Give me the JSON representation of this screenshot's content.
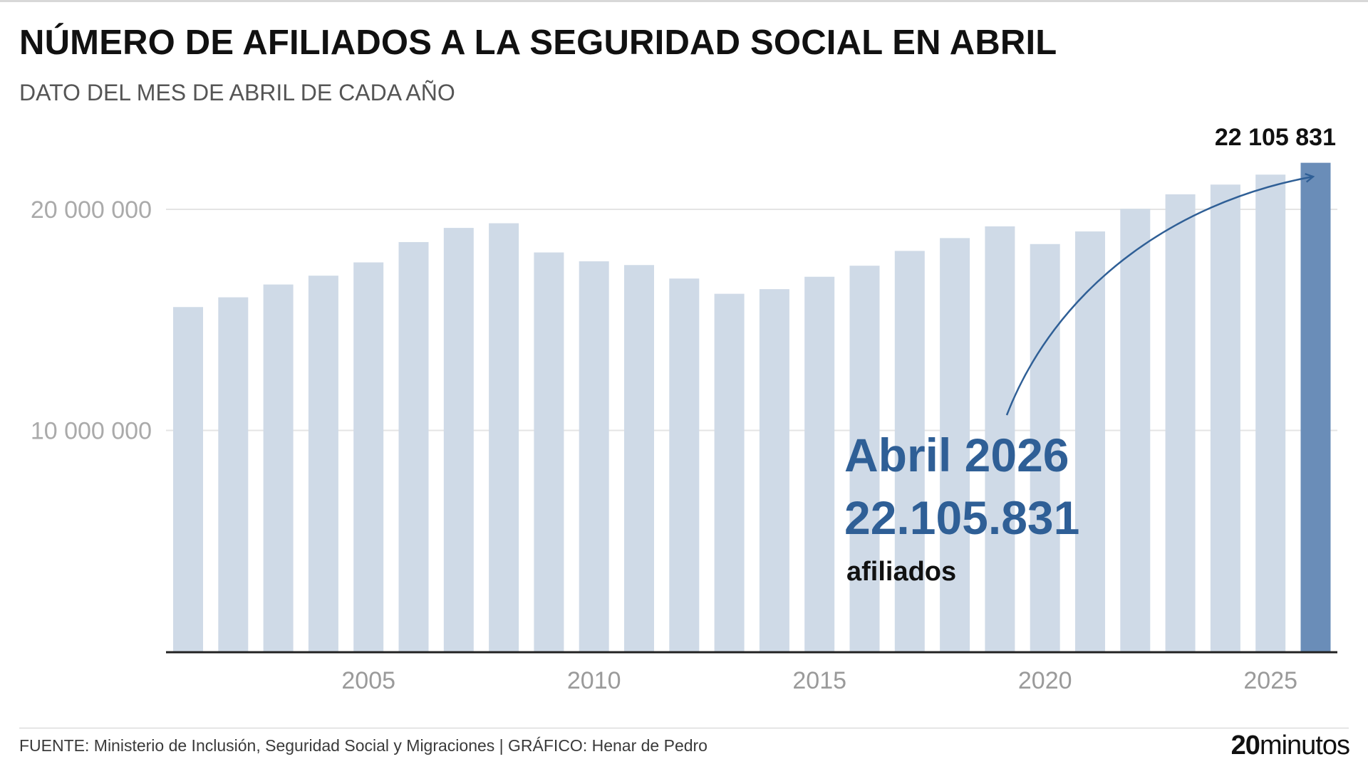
{
  "header": {
    "title": "NÚMERO DE AFILIADOS A LA SEGURIDAD SOCIAL EN ABRIL",
    "subtitle": "DATO DEL MES DE ABRIL DE CADA AÑO"
  },
  "colors": {
    "bar": "#cfdae7",
    "highlight_bar": "#6a8db8",
    "annotation": "#2f5f96",
    "axis": "#222222",
    "grid": "#e4e4e4",
    "tick_text": "#9a9a9a"
  },
  "chart_data": {
    "type": "bar",
    "years": [
      2001,
      2002,
      2003,
      2004,
      2005,
      2006,
      2007,
      2008,
      2009,
      2010,
      2011,
      2012,
      2013,
      2014,
      2015,
      2016,
      2017,
      2018,
      2019,
      2020,
      2021,
      2022,
      2023,
      2024,
      2025,
      2026
    ],
    "values": [
      15580000,
      16020000,
      16600000,
      17000000,
      17600000,
      18520000,
      19160000,
      19370000,
      18050000,
      17650000,
      17480000,
      16870000,
      16180000,
      16390000,
      16950000,
      17450000,
      18120000,
      18700000,
      19230000,
      18430000,
      19000000,
      20020000,
      20680000,
      21120000,
      21570000,
      22105831
    ],
    "highlight_index": 25,
    "ylim": [
      0,
      22300000
    ],
    "yticks": [
      10000000,
      20000000
    ],
    "ytick_labels": [
      "10 000 000",
      "20 000 000"
    ],
    "xticks": [
      2005,
      2010,
      2015,
      2020,
      2025
    ],
    "xtick_labels": [
      "2005",
      "2010",
      "2015",
      "2020",
      "2025"
    ],
    "grid": true,
    "value_label": "22 105 831",
    "annotation": {
      "line1": "Abril 2026",
      "line2": "22.105.831",
      "line3": "afiliados"
    }
  },
  "footer": {
    "source": "FUENTE: Ministerio de Inclusión, Seguridad Social y Migraciones  |  GRÁFICO: Henar de Pedro",
    "logo_number": "20",
    "logo_text": "minutos"
  }
}
